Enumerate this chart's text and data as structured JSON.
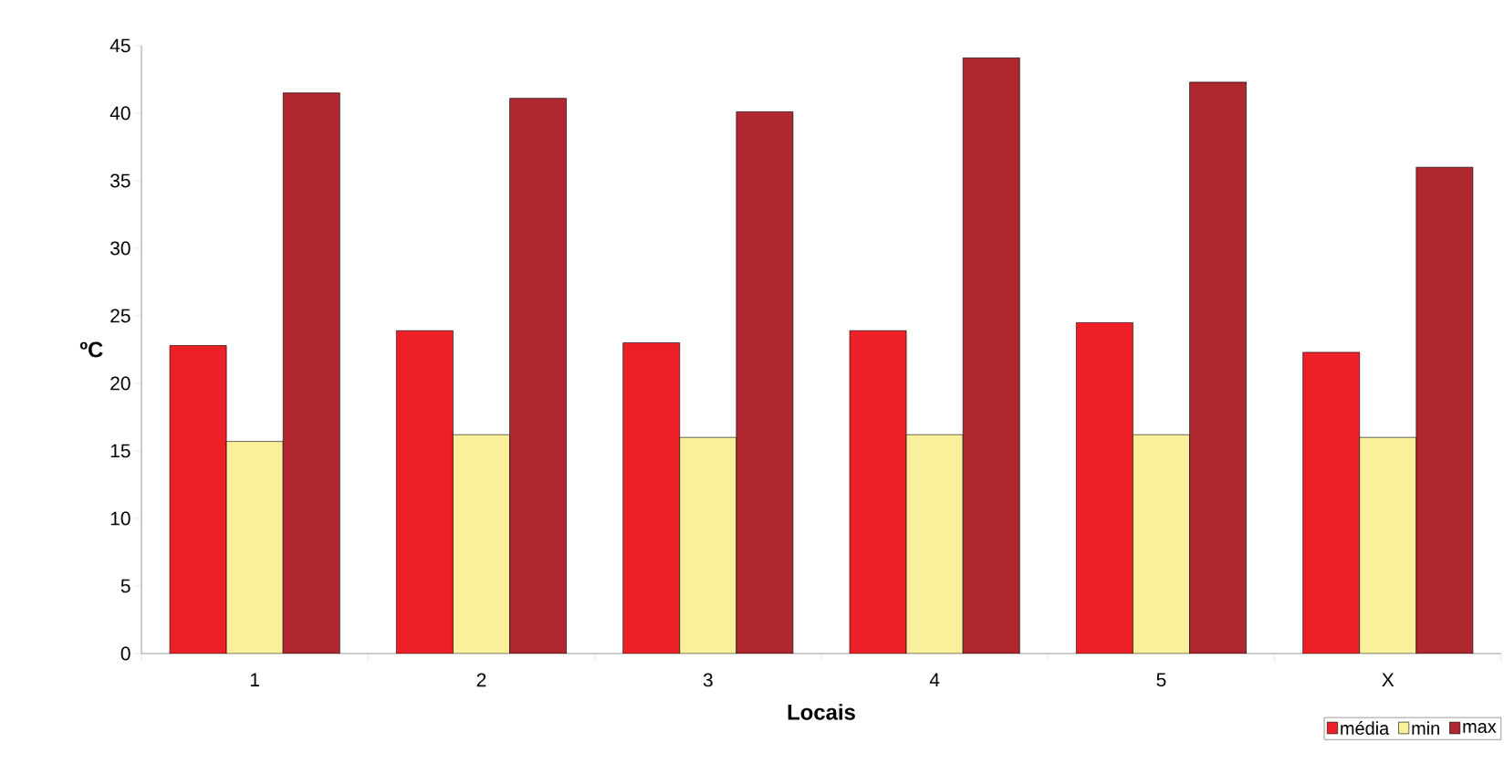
{
  "chart_data": {
    "type": "bar",
    "xlabel": "Locais",
    "ylabel": "ºC",
    "categories": [
      "1",
      "2",
      "3",
      "4",
      "5",
      "X"
    ],
    "series": [
      {
        "name": "média",
        "color": "#ed2027",
        "values": [
          22.8,
          23.9,
          23.0,
          23.9,
          24.5,
          22.3
        ]
      },
      {
        "name": "min",
        "color": "#faf09b",
        "values": [
          15.7,
          16.2,
          16.0,
          16.2,
          16.2,
          16.0
        ]
      },
      {
        "name": "max",
        "color": "#b0282f",
        "values": [
          41.5,
          41.1,
          40.1,
          44.1,
          42.3,
          36.0
        ]
      }
    ],
    "ylim": [
      0,
      45
    ],
    "yticks": [
      0,
      5,
      10,
      15,
      20,
      25,
      30,
      35,
      40,
      45
    ],
    "grid": false,
    "legend": "bottom right"
  }
}
